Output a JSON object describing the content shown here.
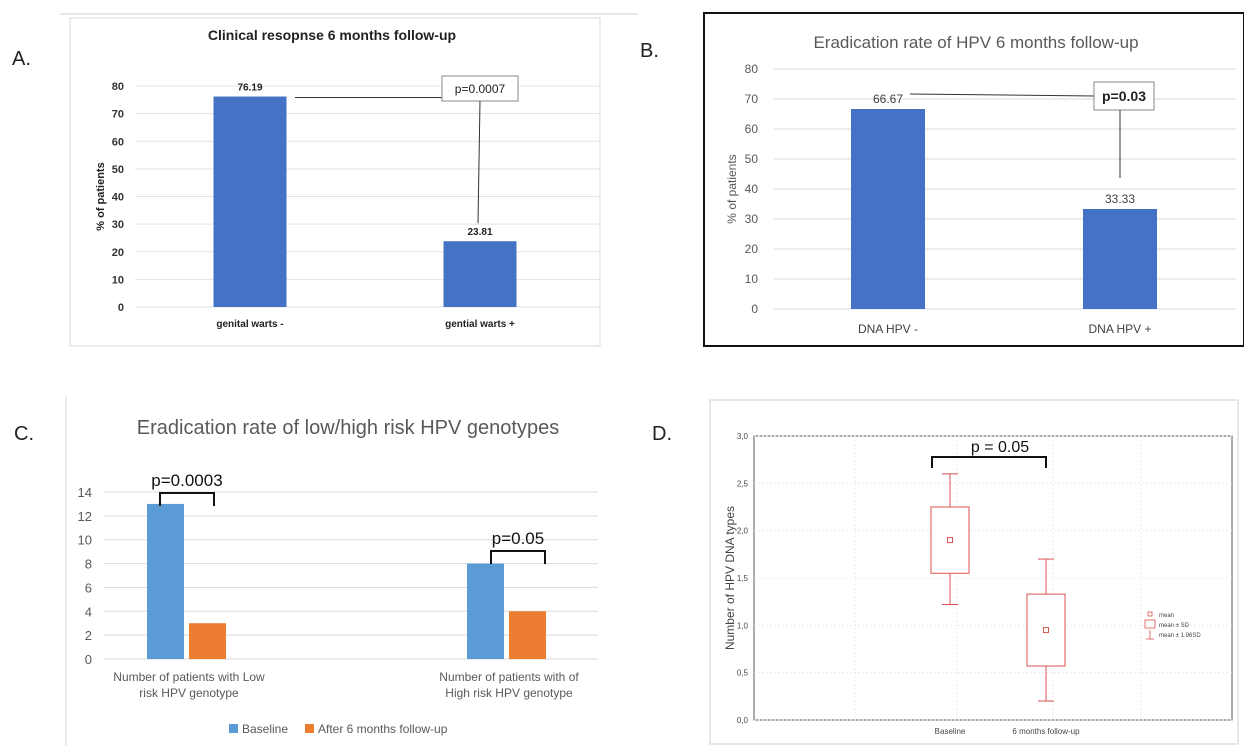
{
  "panels": {
    "a": {
      "letter": "A."
    },
    "b": {
      "letter": "B."
    },
    "c": {
      "letter": "C."
    },
    "d": {
      "letter": "D."
    }
  },
  "chart_data": [
    {
      "id": "A",
      "type": "bar",
      "title": "Clinical resopnse 6 months follow-up",
      "ylabel": "% of patients",
      "xlabel": "",
      "categories": [
        "genital warts -",
        "gential warts +"
      ],
      "values": [
        76.19,
        23.81
      ],
      "data_labels": [
        "76.19",
        "23.81"
      ],
      "ylim": [
        0,
        80
      ],
      "yticks": [
        0,
        10,
        20,
        30,
        40,
        50,
        60,
        70,
        80
      ],
      "annotation": "p=0.0007",
      "grid": true,
      "color": "#4472C4"
    },
    {
      "id": "B",
      "type": "bar",
      "title": "Eradication rate of HPV 6 months follow-up",
      "ylabel": "% of patients",
      "xlabel": "",
      "categories": [
        "DNA HPV -",
        "DNA HPV +"
      ],
      "values": [
        66.67,
        33.33
      ],
      "data_labels": [
        "66.67",
        "33.33"
      ],
      "ylim": [
        0,
        80
      ],
      "yticks": [
        0,
        10,
        20,
        30,
        40,
        50,
        60,
        70,
        80
      ],
      "annotation": "p=0.03",
      "grid": true,
      "color": "#4472C4"
    },
    {
      "id": "C",
      "type": "bar",
      "title": "Eradication rate of low/high risk HPV genotypes",
      "ylabel": "",
      "xlabel": "",
      "categories": [
        [
          "Number of patients with Low",
          "risk HPV genotype"
        ],
        [
          "Number of patients with of",
          "High risk HPV genotype"
        ]
      ],
      "series": [
        {
          "name": "Baseline",
          "values": [
            13,
            8
          ],
          "color": "#5B9BD5"
        },
        {
          "name": "After 6 months follow-up",
          "values": [
            3,
            4
          ],
          "color": "#ED7D31"
        }
      ],
      "ylim": [
        0,
        14
      ],
      "yticks": [
        0,
        2,
        4,
        6,
        8,
        10,
        12,
        14
      ],
      "annotations": [
        "p=0.0003",
        "p=0.05"
      ],
      "legend": "bottom",
      "grid": true
    },
    {
      "id": "D",
      "type": "box",
      "title": "",
      "ylabel": "Number of HPV DNA types",
      "xlabel": "",
      "categories": [
        "Baseline",
        "6 months follow-up"
      ],
      "mean": [
        1.9,
        0.95
      ],
      "mean_sd_low": [
        1.55,
        0.57
      ],
      "mean_sd_high": [
        2.25,
        1.33
      ],
      "mean_196sd_low": [
        1.22,
        0.2
      ],
      "mean_196sd_high": [
        2.6,
        1.7
      ],
      "ylim": [
        0,
        3
      ],
      "yticks": [
        "0,0",
        "0,5",
        "1,0",
        "1,5",
        "2,0",
        "2,5",
        "3,0"
      ],
      "annotation": "p = 0.05",
      "legend_entries": [
        "mean",
        "mean ± SD",
        "mean ± 1.96SD"
      ],
      "legend": "right",
      "grid": true,
      "color": "#d9534f"
    }
  ]
}
